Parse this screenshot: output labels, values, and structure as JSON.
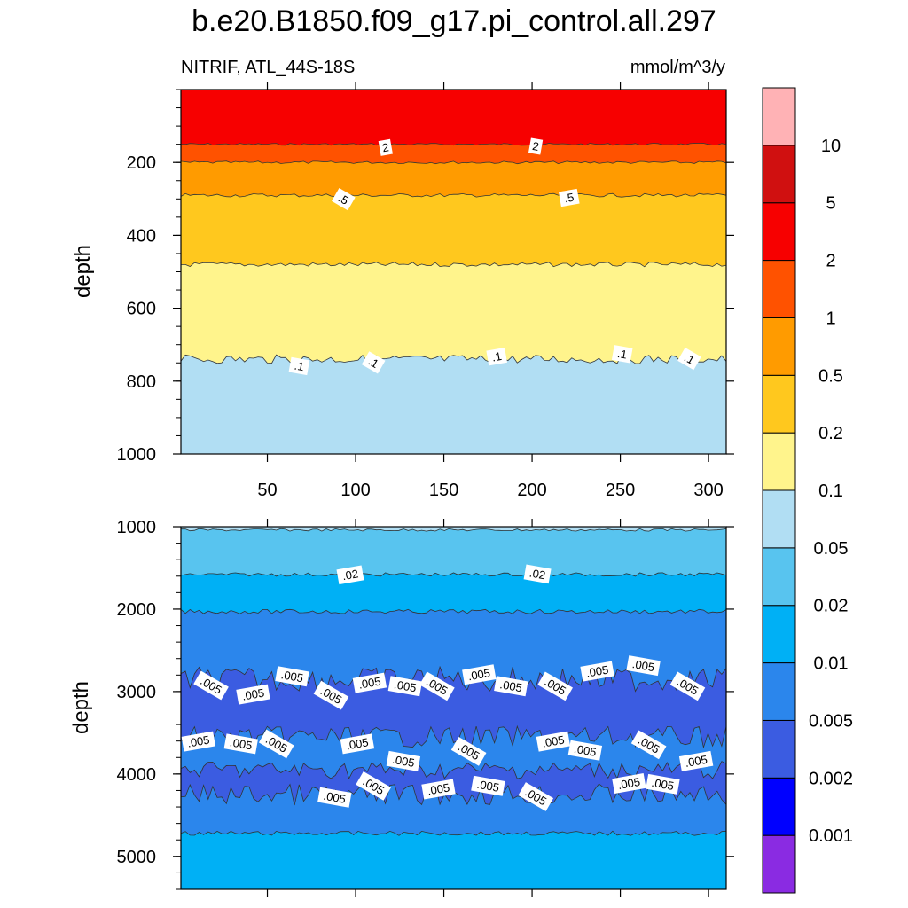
{
  "title": "b.e20.B1850.f09_g17.pi_control.all.297",
  "subtitle_left": "NITRIF, ATL_44S-18S",
  "subtitle_right": "mmol/m^3/y",
  "chart_data": [
    {
      "type": "heatmap",
      "panel": "upper",
      "ylabel": "depth",
      "x_ticks": [
        50,
        100,
        150,
        200,
        250,
        300
      ],
      "x_range": [
        1,
        310
      ],
      "y_ticks": [
        200,
        400,
        600,
        800,
        1000
      ],
      "y_range": [
        0,
        1000
      ],
      "y_reversed": true,
      "bands": [
        {
          "from": 0,
          "to": 150,
          "value_range": "2-5"
        },
        {
          "from": 150,
          "to": 200,
          "value_range": "1-2"
        },
        {
          "from": 200,
          "to": 290,
          "value_range": "0.5-1"
        },
        {
          "from": 290,
          "to": 480,
          "value_range": "0.2-0.5"
        },
        {
          "from": 480,
          "to": 740,
          "value_range": "0.1-0.2"
        },
        {
          "from": 740,
          "to": 1000,
          "value_range": "0.05-0.1"
        }
      ],
      "contour_labels": [
        {
          "text": "2",
          "x": 117,
          "y": 160
        },
        {
          "text": "2",
          "x": 202,
          "y": 157
        },
        {
          "text": ".5",
          "x": 93,
          "y": 302
        },
        {
          "text": ".5",
          "x": 221,
          "y": 298
        },
        {
          "text": ".1",
          "x": 68,
          "y": 760
        },
        {
          "text": ".1",
          "x": 110,
          "y": 750
        },
        {
          "text": ".1",
          "x": 180,
          "y": 734
        },
        {
          "text": ".1",
          "x": 251,
          "y": 727
        },
        {
          "text": ".1",
          "x": 289,
          "y": 740
        }
      ]
    },
    {
      "type": "heatmap",
      "panel": "lower",
      "ylabel": "depth",
      "y_ticks": [
        1000,
        2000,
        3000,
        4000,
        5000
      ],
      "y_range": [
        1000,
        5400
      ],
      "y_reversed": true,
      "bands": [
        {
          "from": 1000,
          "to": 1040,
          "value_range": "0.05-0.1"
        },
        {
          "from": 1040,
          "to": 1580,
          "value_range": "0.02-0.05"
        },
        {
          "from": 1580,
          "to": 2030,
          "value_range": "0.01-0.02"
        },
        {
          "from": 2030,
          "to": 2850,
          "value_range": "0.005-0.01"
        },
        {
          "from": 2850,
          "to": 3550,
          "value_range": "0.002-0.005"
        },
        {
          "from": 3550,
          "to": 3950,
          "value_range": "0.005-0.01"
        },
        {
          "from": 3950,
          "to": 4250,
          "value_range": "0.002-0.005"
        },
        {
          "from": 4250,
          "to": 4720,
          "value_range": "0.005-0.01"
        },
        {
          "from": 4720,
          "to": 5400,
          "value_range": "0.01-0.02"
        }
      ],
      "contour_labels": [
        {
          "text": ".02",
          "x": 97,
          "y": 1590
        },
        {
          "text": ".02",
          "x": 203,
          "y": 1580
        },
        {
          "text": ".005",
          "x": 18,
          "y": 2930
        },
        {
          "text": ".005",
          "x": 42,
          "y": 3040
        },
        {
          "text": ".005",
          "x": 64,
          "y": 2820
        },
        {
          "text": ".005",
          "x": 86,
          "y": 3050
        },
        {
          "text": ".005",
          "x": 108,
          "y": 2900
        },
        {
          "text": ".005",
          "x": 128,
          "y": 2940
        },
        {
          "text": ".005",
          "x": 146,
          "y": 2940
        },
        {
          "text": ".005",
          "x": 170,
          "y": 2800
        },
        {
          "text": ".005",
          "x": 188,
          "y": 2940
        },
        {
          "text": ".005",
          "x": 213,
          "y": 2940
        },
        {
          "text": ".005",
          "x": 237,
          "y": 2760
        },
        {
          "text": ".005",
          "x": 263,
          "y": 2690
        },
        {
          "text": ".005",
          "x": 288,
          "y": 2940
        },
        {
          "text": ".005",
          "x": 11,
          "y": 3610
        },
        {
          "text": ".005",
          "x": 35,
          "y": 3640
        },
        {
          "text": ".005",
          "x": 55,
          "y": 3640
        },
        {
          "text": ".005",
          "x": 101,
          "y": 3640
        },
        {
          "text": ".005",
          "x": 127,
          "y": 3850
        },
        {
          "text": ".005",
          "x": 164,
          "y": 3730
        },
        {
          "text": ".005",
          "x": 212,
          "y": 3610
        },
        {
          "text": ".005",
          "x": 230,
          "y": 3720
        },
        {
          "text": ".005",
          "x": 266,
          "y": 3650
        },
        {
          "text": ".005",
          "x": 293,
          "y": 3850
        },
        {
          "text": ".005",
          "x": 88,
          "y": 4290
        },
        {
          "text": ".005",
          "x": 110,
          "y": 4150
        },
        {
          "text": ".005",
          "x": 147,
          "y": 4190
        },
        {
          "text": ".005",
          "x": 175,
          "y": 4150
        },
        {
          "text": ".005",
          "x": 202,
          "y": 4280
        },
        {
          "text": ".005",
          "x": 255,
          "y": 4120
        },
        {
          "text": ".005",
          "x": 274,
          "y": 4130
        }
      ]
    }
  ],
  "colorbar": {
    "colors": [
      "#8a2be2",
      "#0000ff",
      "#3b5ce1",
      "#2b86ec",
      "#00b0f5",
      "#58c4ef",
      "#b1def3",
      "#fff48c",
      "#ffc81e",
      "#ff9b00",
      "#ff5200",
      "#f70000",
      "#d01010",
      "#ffb2b5"
    ],
    "labels": [
      "0.001",
      "0.002",
      "0.005",
      "0.01",
      "0.02",
      "0.05",
      "0.1",
      "0.2",
      "0.5",
      "1",
      "2",
      "5",
      "10"
    ]
  }
}
